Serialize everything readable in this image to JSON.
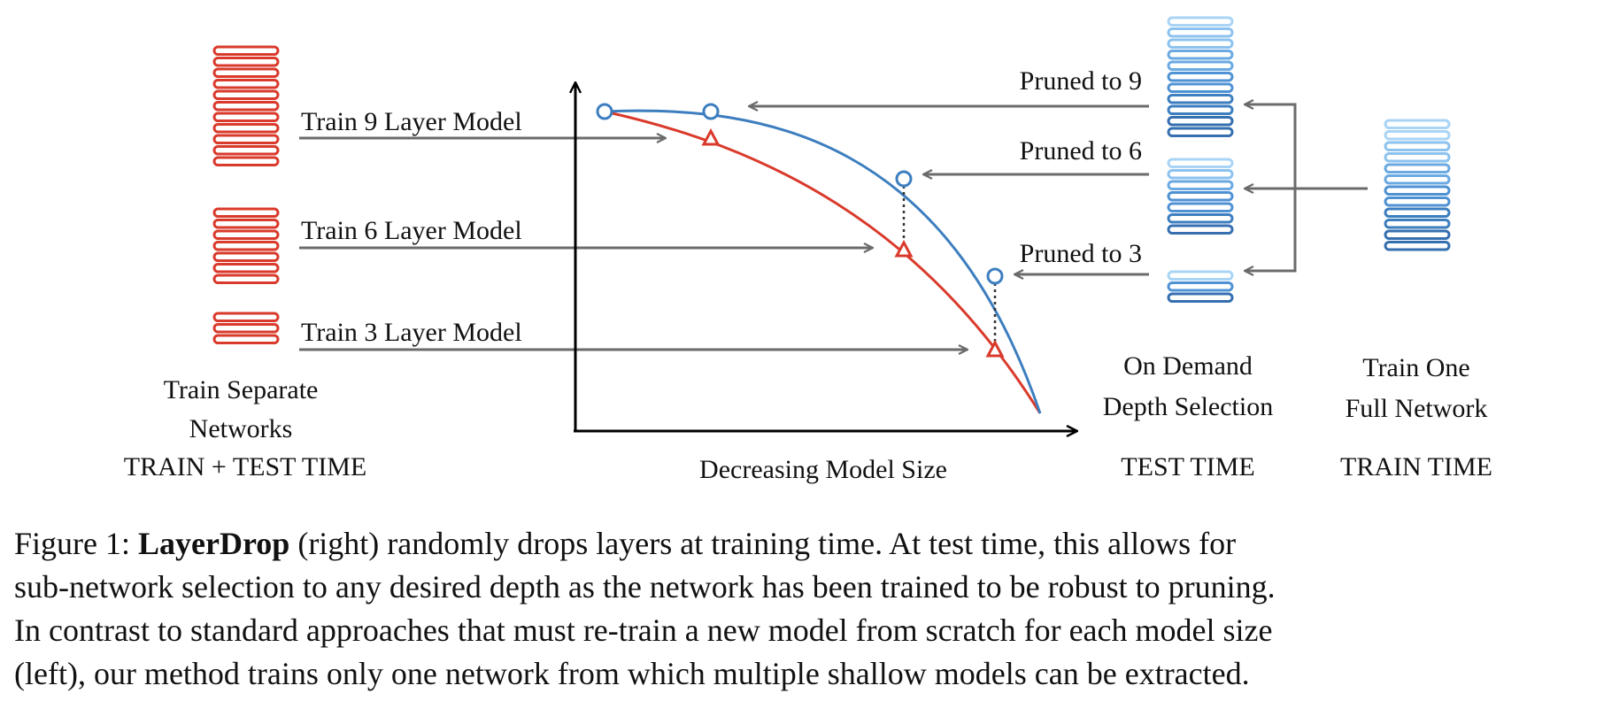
{
  "figure": {
    "left": {
      "train_labels": [
        "Train 9 Layer Model",
        "Train 6 Layer Model",
        "Train 3 Layer Model"
      ],
      "caption_lines": [
        "Train Separate",
        "Networks"
      ],
      "time_label": "TRAIN + TEST TIME"
    },
    "plot": {
      "xlabel": "Decreasing Model Size"
    },
    "pruned_labels": [
      "Pruned to 9",
      "Pruned to 6",
      "Pruned to 3"
    ],
    "test": {
      "caption_lines": [
        "On Demand",
        "Depth Selection"
      ],
      "time_label": "TEST TIME"
    },
    "train": {
      "caption_lines": [
        "Train One",
        "Full Network"
      ],
      "time_label": "TRAIN TIME"
    },
    "colors": {
      "separate_networks": "#d93a2b",
      "layerdrop": "#3d7ebf",
      "arrow": "#6b6b6b",
      "axis": "#000000"
    }
  },
  "caption": {
    "prefix": "Figure 1: ",
    "bold": "LayerDrop",
    "line1_rest": " (right) randomly drops layers at training time.  At test time, this allows for",
    "line2": "sub-network selection to any desired depth as the network has been trained to be robust to pruning.",
    "line3": "In contrast to standard approaches that must re-train a new model from scratch for each model size",
    "line4": "(left), our method trains only one network from which multiple shallow models can be extracted."
  }
}
